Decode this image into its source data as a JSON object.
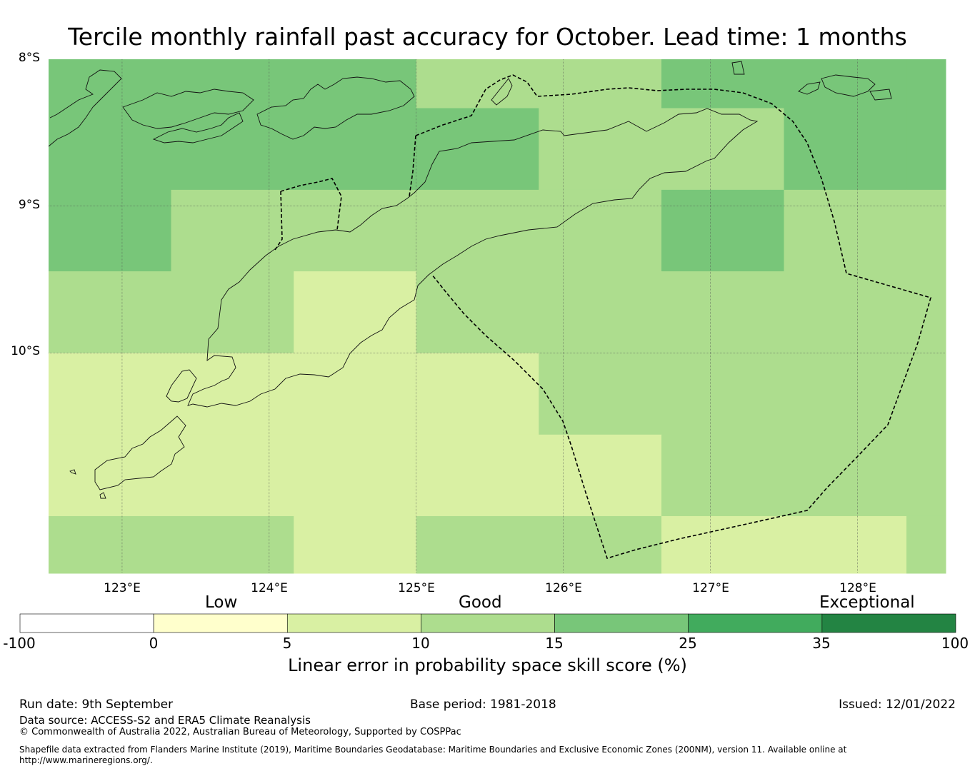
{
  "title": "Tercile monthly rainfall past accuracy for October. Lead time: 1 months",
  "map": {
    "lat_labels": [
      "8°S",
      "9°S",
      "10°S"
    ],
    "lon_labels": [
      "123°E",
      "124°E",
      "125°E",
      "126°E",
      "127°E",
      "128°E"
    ],
    "extent": {
      "lon_min": 122.5,
      "lon_max": 128.6,
      "lat_max": -8.0,
      "lat_min": -11.5
    },
    "grid_lons": [
      122.5,
      123.333,
      124.167,
      125.0,
      125.833,
      126.667,
      127.5,
      128.333,
      128.6
    ],
    "grid_lats": [
      -8.0,
      -8.333,
      -8.889,
      -9.444,
      -10.0,
      -10.556,
      -11.111,
      -11.5
    ],
    "skill_classes": [
      [
        3,
        3,
        3,
        2,
        2,
        3,
        3,
        3
      ],
      [
        3,
        3,
        3,
        3,
        2,
        2,
        3,
        3
      ],
      [
        3,
        2,
        2,
        2,
        2,
        3,
        2,
        2
      ],
      [
        2,
        2,
        1,
        2,
        2,
        2,
        2,
        2
      ],
      [
        1,
        1,
        1,
        1,
        2,
        2,
        2,
        2
      ],
      [
        1,
        1,
        1,
        1,
        1,
        2,
        2,
        2
      ],
      [
        2,
        2,
        1,
        2,
        2,
        1,
        1,
        2
      ]
    ],
    "layers": [
      "coastlines",
      "maritime boundary (EEZ)",
      "lat/lon gridlines"
    ]
  },
  "colorbar": {
    "categories": [
      "Low",
      "Good",
      "Exceptional"
    ],
    "ticks": [
      "-100",
      "0",
      "5",
      "10",
      "15",
      "25",
      "35",
      "100"
    ],
    "colors": [
      "#ffffff",
      "#ffffcc",
      "#d9f0a3",
      "#addd8e",
      "#78c679",
      "#41ab5d",
      "#238443"
    ],
    "label": "Linear error in probability space skill score (%)"
  },
  "footer": {
    "run_date": "Run date: 9th September",
    "base_period": "Base period: 1981-2018",
    "issued": "Issued: 12/01/2022",
    "data_source": "Data source: ACCESS-S2 and ERA5 Climate Reanalysis",
    "copyright": "© Commonwealth of Australia 2022, Australian Bureau of Meteorology, Supported by COSPPac",
    "shapefile_note": "Shapefile data extracted from Flanders Marine Institute (2019), Maritime Boundaries Geodatabase: Maritime Boundaries and Exclusive Economic Zones (200NM), version 11. Available online at http://www.marineregions.org/."
  }
}
